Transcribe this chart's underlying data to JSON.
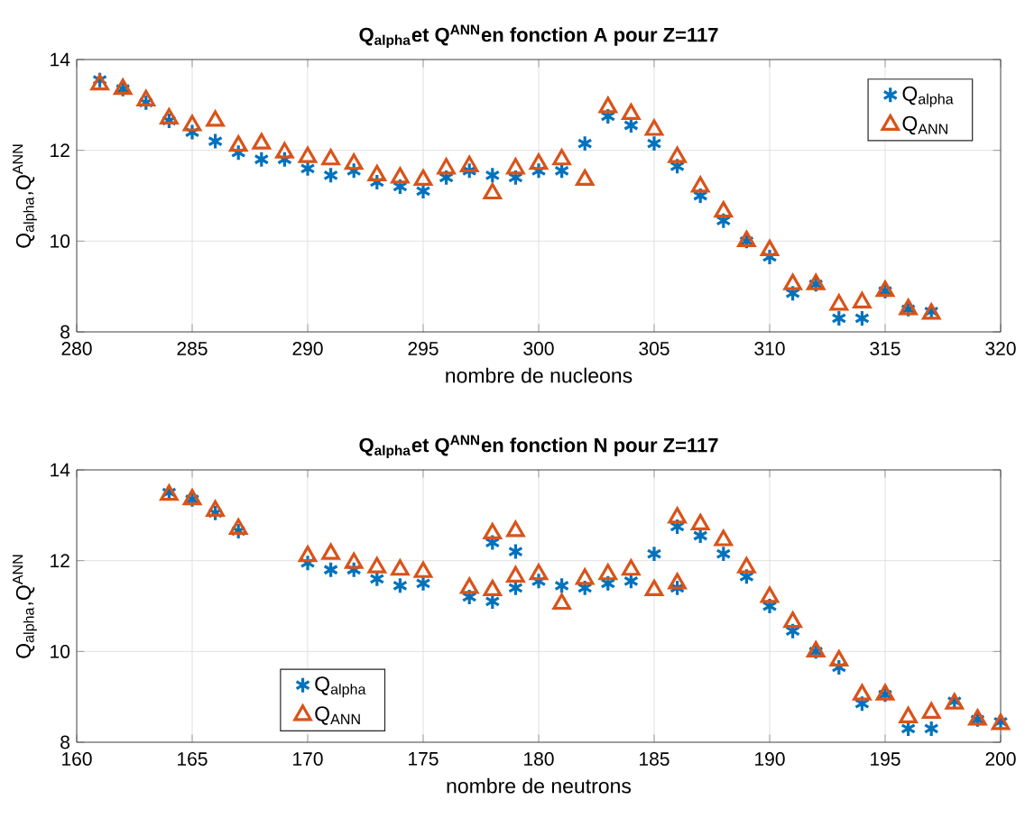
{
  "chart_data": [
    {
      "type": "scatter",
      "title": "Q$_{alpha}$et Q$^{ANN}$en fonction A pour Z=117",
      "xlabel": "nombre de nucleons",
      "ylabel": "Q$_{alpha}$,Q$^{ANN}$",
      "xlim": [
        280,
        320
      ],
      "xticks": [
        280,
        285,
        290,
        295,
        300,
        305,
        310,
        315,
        320
      ],
      "ylim": [
        8,
        14
      ],
      "yticks": [
        8,
        10,
        12,
        14
      ],
      "grid": true,
      "legend": "top right",
      "series": [
        {
          "name": "Q$_{alpha}$",
          "color": "#0072bd",
          "marker": "cross",
          "x": [
            281,
            282,
            283,
            284,
            285,
            286,
            287,
            288,
            289,
            290,
            291,
            292,
            293,
            294,
            295,
            296,
            297,
            298,
            299,
            300,
            301,
            302,
            303,
            304,
            305,
            306,
            307,
            308,
            309,
            310,
            311,
            312,
            313,
            314,
            315,
            316,
            317
          ],
          "values": [
            13.55,
            13.35,
            13.05,
            12.65,
            12.4,
            12.2,
            11.95,
            11.8,
            11.8,
            11.6,
            11.45,
            11.55,
            11.3,
            11.2,
            11.1,
            11.4,
            11.55,
            11.45,
            11.4,
            11.55,
            11.55,
            12.15,
            12.75,
            12.55,
            12.15,
            11.65,
            11.0,
            10.45,
            10.0,
            9.65,
            8.85,
            9.05,
            8.3,
            8.3,
            8.9,
            8.5,
            8.45
          ]
        },
        {
          "name": "Q$_{ANN}$",
          "color": "#d95319",
          "marker": "triangle",
          "x": [
            281,
            282,
            283,
            284,
            285,
            286,
            287,
            288,
            289,
            290,
            291,
            292,
            293,
            294,
            295,
            296,
            297,
            298,
            299,
            300,
            301,
            302,
            303,
            304,
            305,
            306,
            307,
            308,
            309,
            310,
            311,
            312,
            313,
            314,
            315,
            316,
            317
          ],
          "values": [
            13.45,
            13.35,
            13.1,
            12.7,
            12.55,
            12.65,
            12.1,
            12.15,
            11.95,
            11.85,
            11.8,
            11.7,
            11.45,
            11.4,
            11.35,
            11.6,
            11.65,
            11.05,
            11.6,
            11.7,
            11.8,
            11.35,
            12.95,
            12.8,
            12.45,
            11.85,
            11.2,
            10.65,
            10.0,
            9.8,
            9.05,
            9.05,
            8.6,
            8.65,
            8.9,
            8.5,
            8.4
          ]
        }
      ]
    },
    {
      "type": "scatter",
      "title": "Q$_{alpha}$et Q$^{ANN}$en fonction N pour Z=117",
      "xlabel": "nombre de neutrons",
      "ylabel": "Q$_{alpha}$,Q$^{ANN}$",
      "xlim": [
        160,
        200
      ],
      "xticks": [
        160,
        165,
        170,
        175,
        180,
        185,
        190,
        195,
        200
      ],
      "ylim": [
        8,
        14
      ],
      "yticks": [
        8,
        10,
        12,
        14
      ],
      "grid": true,
      "legend": "bottom left",
      "series": [
        {
          "name": "Q$_{alpha}$",
          "color": "#0072bd",
          "marker": "cross",
          "x": [
            164,
            165,
            166,
            167,
            170,
            171,
            172,
            173,
            174,
            175,
            177,
            178,
            178,
            179,
            179,
            180,
            181,
            182,
            183,
            184,
            185,
            186,
            186,
            187,
            188,
            189,
            190,
            191,
            192,
            193,
            194,
            195,
            196,
            197,
            198,
            199,
            200
          ],
          "values": [
            13.5,
            13.35,
            13.05,
            12.65,
            11.95,
            11.8,
            11.8,
            11.6,
            11.45,
            11.5,
            11.2,
            11.1,
            12.4,
            12.2,
            11.4,
            11.55,
            11.45,
            11.4,
            11.5,
            11.55,
            12.15,
            11.4,
            12.75,
            12.55,
            12.15,
            11.65,
            11.0,
            10.45,
            10.0,
            9.65,
            8.85,
            9.05,
            8.3,
            8.3,
            8.9,
            8.5,
            8.45
          ]
        },
        {
          "name": "Q$_{ANN}$",
          "color": "#d95319",
          "marker": "triangle",
          "x": [
            164,
            165,
            166,
            167,
            170,
            171,
            172,
            173,
            174,
            175,
            177,
            178,
            178,
            179,
            179,
            180,
            181,
            182,
            183,
            184,
            185,
            186,
            186,
            187,
            188,
            189,
            190,
            191,
            192,
            193,
            194,
            195,
            196,
            197,
            198,
            199,
            200
          ],
          "values": [
            13.45,
            13.35,
            13.1,
            12.7,
            12.1,
            12.15,
            11.95,
            11.85,
            11.8,
            11.75,
            11.4,
            11.35,
            12.6,
            12.65,
            11.65,
            11.7,
            11.05,
            11.6,
            11.7,
            11.8,
            11.35,
            11.5,
            12.95,
            12.8,
            12.45,
            11.85,
            11.2,
            10.65,
            10.0,
            9.8,
            9.05,
            9.05,
            8.55,
            8.65,
            8.85,
            8.5,
            8.4
          ]
        }
      ]
    }
  ]
}
